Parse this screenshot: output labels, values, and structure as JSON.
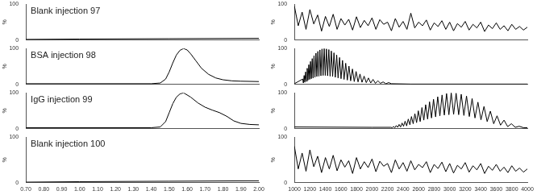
{
  "chart_data": [
    {
      "type": "line",
      "title": "Blank injection 97",
      "color": "#000000",
      "grid": false,
      "tick_labels": "y",
      "x": [
        0.7,
        1.0,
        1.5,
        2.0
      ],
      "values": [
        2,
        3,
        4,
        5
      ],
      "xlim": [
        0.7,
        2.0
      ],
      "ylim": [
        0,
        100
      ],
      "yticks": [
        0,
        100
      ],
      "y_label": "%"
    },
    {
      "type": "line",
      "title": "BSA injection 98",
      "color": "#000000",
      "grid": false,
      "tick_labels": "y",
      "x": [
        0.7,
        1.4,
        1.45,
        1.48,
        1.5,
        1.52,
        1.54,
        1.56,
        1.58,
        1.6,
        1.62,
        1.65,
        1.68,
        1.72,
        1.76,
        1.8,
        1.85,
        1.9,
        2.0
      ],
      "values": [
        2,
        2,
        4,
        15,
        35,
        60,
        82,
        95,
        100,
        96,
        85,
        65,
        45,
        28,
        18,
        13,
        10,
        9,
        8
      ],
      "xlim": [
        0.7,
        2.0
      ],
      "ylim": [
        0,
        100
      ],
      "yticks": [
        0,
        100
      ],
      "y_label": "%"
    },
    {
      "type": "line",
      "title": "IgG injection 99",
      "color": "#000000",
      "grid": false,
      "tick_labels": "y",
      "x": [
        0.7,
        1.4,
        1.45,
        1.48,
        1.5,
        1.52,
        1.54,
        1.56,
        1.58,
        1.62,
        1.66,
        1.7,
        1.74,
        1.78,
        1.82,
        1.86,
        1.9,
        1.95,
        2.0
      ],
      "values": [
        3,
        3,
        5,
        20,
        45,
        70,
        88,
        97,
        100,
        88,
        72,
        60,
        52,
        45,
        35,
        22,
        15,
        12,
        11
      ],
      "xlim": [
        0.7,
        2.0
      ],
      "ylim": [
        0,
        100
      ],
      "yticks": [
        0,
        100
      ],
      "y_label": "%"
    },
    {
      "type": "line",
      "title": "Blank injection 100",
      "color": "#000000",
      "grid": false,
      "x": [
        0.7,
        1.0,
        1.5,
        2.0
      ],
      "values": [
        1,
        2,
        3,
        4
      ],
      "xlim": [
        0.7,
        2.0
      ],
      "xticks": [
        {
          "value": 0.7,
          "label": "0.70"
        },
        {
          "value": 0.8,
          "label": "0.80"
        },
        {
          "value": 0.9,
          "label": "0.90"
        },
        {
          "value": 1.0,
          "label": "1.00"
        },
        {
          "value": 1.1,
          "label": "1.10"
        },
        {
          "value": 1.2,
          "label": "1.20"
        },
        {
          "value": 1.3,
          "label": "1.30"
        },
        {
          "value": 1.4,
          "label": "1.40"
        },
        {
          "value": 1.5,
          "label": "1.50"
        },
        {
          "value": 1.6,
          "label": "1.60"
        },
        {
          "value": 1.7,
          "label": "1.70"
        },
        {
          "value": 1.8,
          "label": "1.80"
        },
        {
          "value": 1.9,
          "label": "1.90"
        },
        {
          "value": 2.0,
          "label": "2.00"
        }
      ],
      "ylim": [
        0,
        100
      ],
      "yticks": [
        0,
        100
      ],
      "y_label": "%"
    },
    {
      "type": "line",
      "color": "#000000",
      "grid": false,
      "tick_labels": "y",
      "x": [
        1000,
        1050,
        1100,
        1150,
        1200,
        1250,
        1300,
        1350,
        1400,
        1450,
        1500,
        1550,
        1600,
        1650,
        1700,
        1750,
        1800,
        1850,
        1900,
        1950,
        2000,
        2050,
        2100,
        2150,
        2200,
        2250,
        2300,
        2350,
        2400,
        2450,
        2500,
        2550,
        2600,
        2650,
        2700,
        2750,
        2800,
        2850,
        2900,
        2950,
        3000,
        3050,
        3100,
        3150,
        3200,
        3250,
        3300,
        3350,
        3400,
        3450,
        3500,
        3550,
        3600,
        3650,
        3700,
        3750,
        3800,
        3850,
        3900,
        3950,
        4000
      ],
      "values": [
        95,
        40,
        78,
        30,
        85,
        45,
        70,
        25,
        66,
        38,
        72,
        30,
        60,
        42,
        58,
        28,
        65,
        35,
        55,
        40,
        62,
        30,
        57,
        44,
        50,
        26,
        60,
        36,
        52,
        30,
        75,
        34,
        50,
        40,
        56,
        28,
        48,
        38,
        54,
        30,
        50,
        26,
        46,
        36,
        52,
        28,
        44,
        34,
        50,
        24,
        42,
        32,
        48,
        30,
        40,
        26,
        44,
        30,
        38,
        28,
        36
      ],
      "xlim": [
        1000,
        4000
      ],
      "ylim": [
        0,
        100
      ],
      "yticks": [
        0,
        100
      ],
      "y_label": "%"
    },
    {
      "type": "line",
      "color": "#000000",
      "grid": false,
      "tick_labels": "y",
      "x": [
        1000,
        1107,
        1116,
        1126,
        1135,
        1145,
        1155,
        1165,
        1175,
        1186,
        1197,
        1208,
        1219,
        1230,
        1241,
        1253,
        1265,
        1278,
        1290,
        1303,
        1316,
        1329,
        1342,
        1356,
        1370,
        1384,
        1398,
        1413,
        1428,
        1444,
        1460,
        1476,
        1493,
        1510,
        1527,
        1545,
        1563,
        1582,
        1601,
        1620,
        1640,
        1661,
        1682,
        1703,
        1725,
        1748,
        1771,
        1795,
        1820,
        1845,
        1871,
        1898,
        1926,
        1954,
        1983,
        2013,
        2044,
        2076,
        2109,
        2143,
        2178,
        2214,
        2250,
        2500,
        4000
      ],
      "values": [
        2,
        15,
        4,
        25,
        6,
        35,
        9,
        45,
        12,
        55,
        14,
        64,
        16,
        72,
        18,
        80,
        20,
        87,
        22,
        92,
        23,
        96,
        24,
        99,
        25,
        100,
        25,
        99,
        24,
        97,
        23,
        93,
        22,
        88,
        20,
        82,
        18,
        75,
        16,
        67,
        14,
        59,
        12,
        51,
        10,
        43,
        8,
        36,
        7,
        29,
        6,
        23,
        5,
        18,
        4,
        14,
        3,
        10,
        3,
        7,
        2,
        5,
        2,
        1,
        1
      ],
      "xlim": [
        1000,
        4000
      ],
      "ylim": [
        0,
        100
      ],
      "yticks": [
        0,
        100
      ],
      "y_label": "%"
    },
    {
      "type": "line",
      "color": "#000000",
      "grid": false,
      "tick_labels": "y",
      "x": [
        1000,
        2000,
        2242,
        2260,
        2277,
        2295,
        2313,
        2331,
        2349,
        2368,
        2387,
        2406,
        2426,
        2446,
        2467,
        2488,
        2508,
        2530,
        2552,
        2574,
        2596,
        2620,
        2643,
        2667,
        2691,
        2716,
        2741,
        2766,
        2792,
        2819,
        2846,
        2874,
        2902,
        2931,
        2960,
        2990,
        3020,
        3051,
        3083,
        3116,
        3149,
        3183,
        3217,
        3253,
        3289,
        3326,
        3364,
        3403,
        3442,
        3483,
        3524,
        3567,
        3610,
        3655,
        3700,
        3747,
        3795,
        3845,
        3895,
        3950,
        4000
      ],
      "values": [
        5,
        4,
        4,
        3,
        6,
        3,
        9,
        4,
        12,
        5,
        16,
        7,
        21,
        8,
        27,
        11,
        34,
        14,
        42,
        17,
        50,
        20,
        59,
        24,
        67,
        27,
        75,
        30,
        82,
        33,
        89,
        36,
        94,
        38,
        98,
        39,
        100,
        40,
        99,
        39,
        96,
        37,
        91,
        34,
        84,
        30,
        74,
        25,
        62,
        20,
        49,
        14,
        36,
        10,
        24,
        6,
        14,
        4,
        7,
        3,
        3
      ],
      "xlim": [
        1000,
        4000
      ],
      "ylim": [
        0,
        100
      ],
      "yticks": [
        0,
        100
      ],
      "y_label": "%"
    },
    {
      "type": "line",
      "color": "#000000",
      "grid": false,
      "x": [
        1000,
        1050,
        1100,
        1150,
        1200,
        1250,
        1300,
        1350,
        1400,
        1450,
        1500,
        1550,
        1600,
        1650,
        1700,
        1750,
        1800,
        1850,
        1900,
        1950,
        2000,
        2050,
        2100,
        2150,
        2200,
        2250,
        2300,
        2350,
        2400,
        2450,
        2500,
        2550,
        2600,
        2650,
        2700,
        2750,
        2800,
        2850,
        2900,
        2950,
        3000,
        3050,
        3100,
        3150,
        3200,
        3250,
        3300,
        3350,
        3400,
        3450,
        3500,
        3550,
        3600,
        3650,
        3700,
        3750,
        3800,
        3850,
        3900,
        3950,
        4000
      ],
      "values": [
        80,
        30,
        65,
        25,
        72,
        35,
        58,
        22,
        55,
        30,
        60,
        26,
        50,
        34,
        48,
        20,
        55,
        30,
        46,
        33,
        52,
        24,
        47,
        36,
        42,
        22,
        50,
        30,
        44,
        25,
        48,
        28,
        40,
        33,
        46,
        22,
        40,
        31,
        45,
        24,
        42,
        21,
        38,
        30,
        44,
        23,
        37,
        28,
        42,
        20,
        36,
        27,
        40,
        25,
        34,
        22,
        37,
        25,
        32,
        23,
        30
      ],
      "xlim": [
        1000,
        4000
      ],
      "xticks": [
        1000,
        1200,
        1400,
        1600,
        1800,
        2000,
        2200,
        2400,
        2600,
        2800,
        3000,
        3200,
        3400,
        3600,
        3800,
        4000
      ],
      "ylim": [
        0,
        100
      ],
      "yticks": [
        0,
        100
      ],
      "y_label": "%"
    }
  ]
}
